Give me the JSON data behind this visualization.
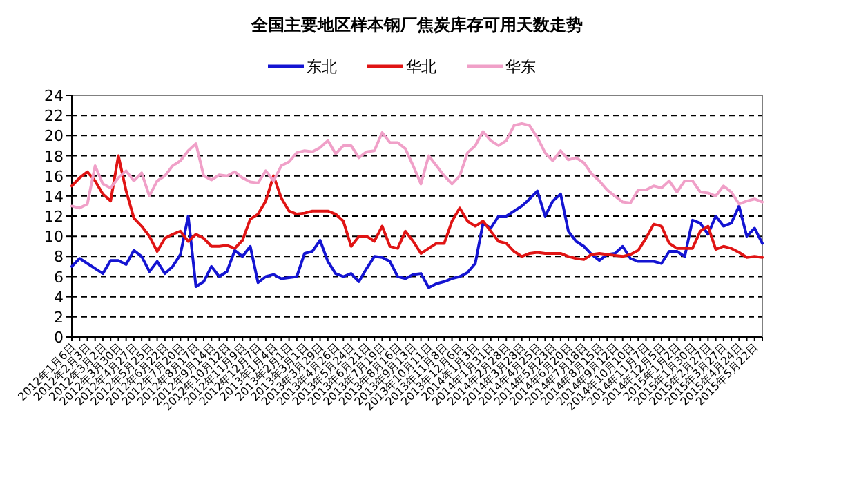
{
  "chart_data": {
    "type": "line",
    "title": "全国主要地区样本钢厂焦炭库存可用天数走势",
    "categories": [
      "2012年1月6日",
      null,
      "2012年2月3日",
      null,
      "2012年3月2日",
      null,
      "2012年3月30日",
      null,
      "2012年4月27日",
      null,
      "2012年5月25日",
      null,
      "2012年6月22日",
      null,
      "2012年7月20日",
      null,
      "2012年8月17日",
      null,
      "2012年9月14日",
      null,
      "2012年10月12日",
      null,
      "2012年11月9日",
      null,
      "2012年12月7日",
      null,
      "2013年1月4日",
      null,
      "2013年2月1日",
      null,
      "2013年3月1日",
      null,
      "2013年3月29日",
      null,
      "2013年4月26日",
      null,
      "2013年5月24日",
      null,
      "2013年6月21日",
      null,
      "2013年7月19日",
      null,
      "2013年8月16日",
      null,
      "2013年9月13日",
      null,
      "2013年10月11日",
      null,
      "2013年11月8日",
      null,
      "2013年12月6日",
      null,
      "2014年1月3日",
      null,
      "2014年1月31日",
      null,
      "2014年2月28日",
      null,
      "2014年3月28日",
      null,
      "2014年4月25日",
      null,
      "2014年5月23日",
      null,
      "2014年6月20日",
      null,
      "2014年7月18日",
      null,
      "2014年8月15日",
      null,
      "2014年9月12日",
      null,
      "2014年10月10日",
      null,
      "2014年11月7日",
      null,
      "2014年12月5日",
      null,
      "2015年1月2日",
      null,
      "2015年1月30日",
      null,
      "2015年2月27日",
      null,
      "2015年3月27日",
      null,
      "2015年4月24日",
      null,
      "2015年5月22日",
      null
    ],
    "series": [
      {
        "name": "东北",
        "color": "#1414d2",
        "values": [
          7.0,
          7.8,
          7.3,
          6.8,
          6.3,
          7.6,
          7.6,
          7.2,
          8.6,
          8.0,
          6.5,
          7.5,
          6.3,
          7.0,
          8.2,
          12.0,
          5.0,
          5.5,
          7.0,
          6.0,
          6.5,
          8.6,
          8.0,
          9.0,
          5.4,
          6.0,
          6.2,
          5.8,
          5.9,
          6.0,
          8.3,
          8.5,
          9.6,
          7.5,
          6.3,
          6.0,
          6.3,
          5.5,
          6.8,
          8.0,
          7.9,
          7.5,
          6.0,
          5.8,
          6.2,
          6.3,
          4.9,
          5.3,
          5.5,
          5.8,
          6.0,
          6.4,
          7.3,
          11.3,
          10.8,
          12.0,
          12.0,
          12.5,
          13.0,
          13.7,
          14.5,
          12.0,
          13.5,
          14.2,
          10.5,
          9.5,
          9.0,
          8.2,
          7.6,
          8.2,
          8.3,
          9.0,
          7.8,
          7.5,
          7.5,
          7.5,
          7.3,
          8.5,
          8.5,
          8.0,
          11.6,
          11.3,
          10.2,
          12.0,
          11.0,
          11.3,
          13.0,
          10.0,
          10.8,
          9.3
        ]
      },
      {
        "name": "华北",
        "color": "#e01414",
        "values": [
          15.0,
          15.8,
          16.4,
          15.5,
          14.2,
          13.5,
          18.0,
          14.5,
          11.8,
          11.0,
          10.0,
          8.5,
          9.8,
          10.2,
          10.5,
          9.5,
          10.2,
          9.8,
          9.0,
          9.0,
          9.1,
          8.8,
          9.6,
          11.7,
          12.2,
          13.5,
          16.0,
          13.8,
          12.5,
          12.2,
          12.3,
          12.5,
          12.5,
          12.5,
          12.2,
          11.5,
          9.0,
          10.0,
          10.0,
          9.5,
          11.0,
          9.0,
          8.8,
          10.5,
          9.5,
          8.3,
          8.8,
          9.3,
          9.3,
          11.5,
          12.8,
          11.5,
          11.0,
          11.5,
          10.5,
          9.5,
          9.3,
          8.5,
          8.0,
          8.3,
          8.4,
          8.3,
          8.3,
          8.3,
          8.0,
          7.8,
          7.7,
          8.2,
          8.3,
          8.2,
          8.1,
          8.0,
          8.2,
          8.6,
          9.8,
          11.2,
          11.0,
          9.3,
          8.8,
          8.8,
          8.8,
          10.5,
          11.0,
          8.7,
          9.0,
          8.8,
          8.4,
          7.9,
          8.0,
          7.9
        ]
      },
      {
        "name": "华东",
        "color": "#f0a0c8",
        "values": [
          13.0,
          12.8,
          13.2,
          17.0,
          15.2,
          14.8,
          15.8,
          16.5,
          15.5,
          16.3,
          14.0,
          15.5,
          16.0,
          17.0,
          17.5,
          18.5,
          19.2,
          16.0,
          15.6,
          16.1,
          16.0,
          16.4,
          15.8,
          15.4,
          15.3,
          16.5,
          15.5,
          17.0,
          17.4,
          18.3,
          18.5,
          18.4,
          18.8,
          19.5,
          18.2,
          19.0,
          19.0,
          17.8,
          18.4,
          18.5,
          20.3,
          19.3,
          19.3,
          18.7,
          17.0,
          15.2,
          18.0,
          17.0,
          16.0,
          15.2,
          16.0,
          18.3,
          19.0,
          20.4,
          19.5,
          19.0,
          19.5,
          21.0,
          21.2,
          21.0,
          19.8,
          18.3,
          17.5,
          18.5,
          17.6,
          17.8,
          17.3,
          16.2,
          15.5,
          14.6,
          14.0,
          13.4,
          13.3,
          14.6,
          14.6,
          15.0,
          14.8,
          15.5,
          14.4,
          15.5,
          15.5,
          14.4,
          14.3,
          14.0,
          15.0,
          14.4,
          13.2,
          13.5,
          13.7,
          13.4
        ]
      }
    ],
    "ylim": [
      0,
      24
    ],
    "yticks": [
      0,
      2,
      4,
      6,
      8,
      10,
      12,
      14,
      16,
      18,
      20,
      22,
      24
    ],
    "grid": "y",
    "legend": "top",
    "line_style": "solid"
  }
}
